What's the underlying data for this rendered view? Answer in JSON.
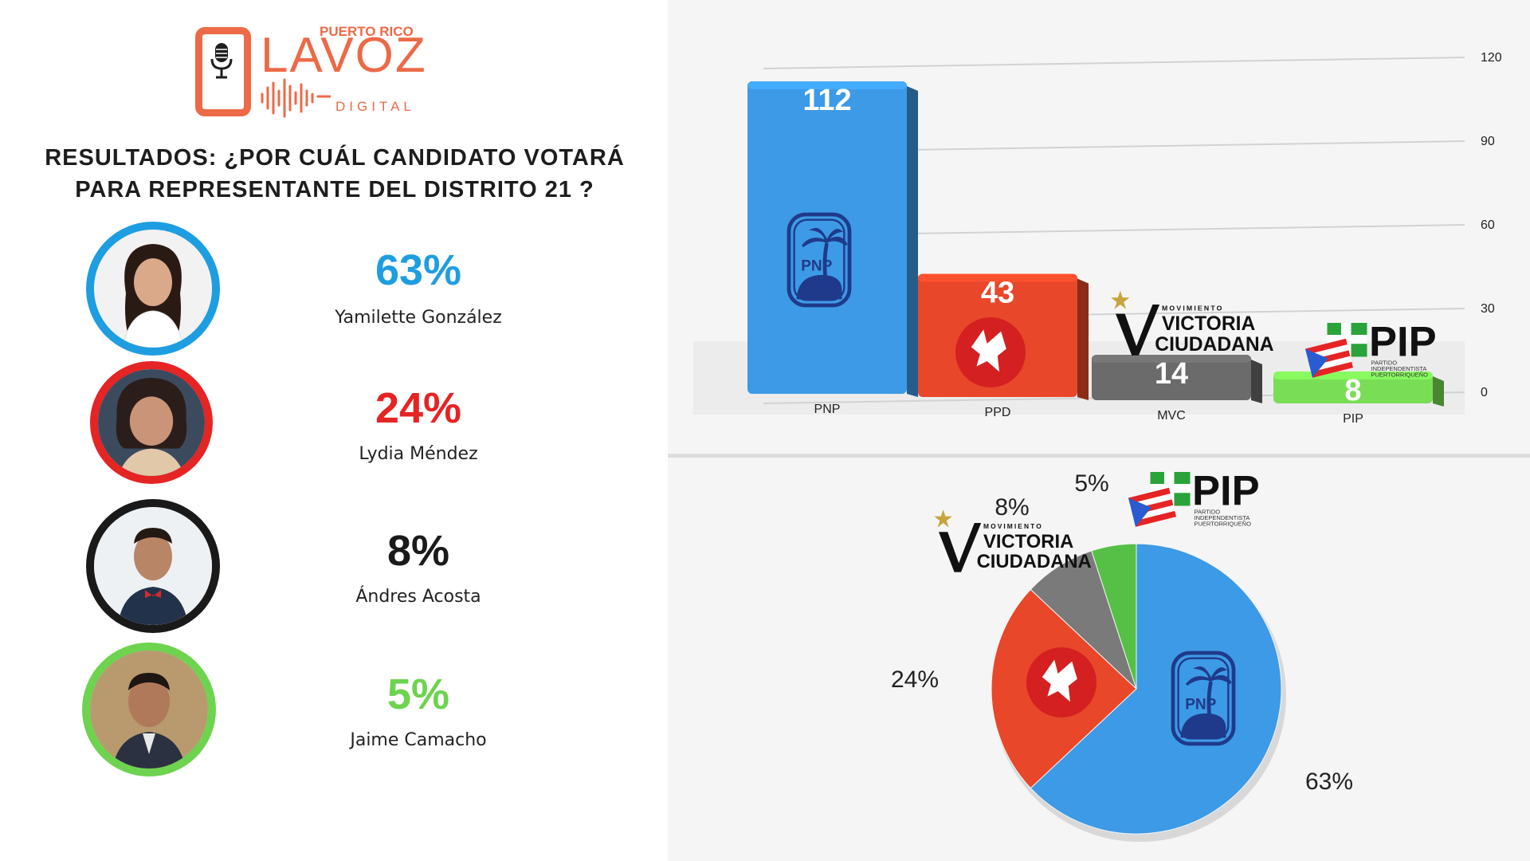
{
  "logo": {
    "line1": "PUERTO RICO",
    "line2": "LAVOZ",
    "line3": "DIGITAL"
  },
  "headline": {
    "line1": "RESULTADOS: ¿POR CUÁL CANDIDATO VOTARÁ",
    "line2": "PARA REPRESENTANTE DEL DISTRITO 21 ?"
  },
  "candidates": [
    {
      "percent": "63%",
      "name": "Yamilette González",
      "color": "#1e9ee0"
    },
    {
      "percent": "24%",
      "name": "Lydia Méndez",
      "color": "#e52424"
    },
    {
      "percent": "8%",
      "name": "Ándres Acosta",
      "color": "#1a1a1a"
    },
    {
      "percent": "5%",
      "name": "Jaime Camacho",
      "color": "#6ed34f"
    }
  ],
  "logos": {
    "pnp": "PNP",
    "mvc_small": "MOVIMIENTO",
    "mvc_line1": "VICTORIA",
    "mvc_line2": "CIUDADANA",
    "pip_big": "PIP",
    "pip_l1": "PARTIDO",
    "pip_l2": "INDEPENDENTISTA",
    "pip_l3": "PUERTORRIQUEÑO"
  },
  "chart_data": [
    {
      "type": "bar",
      "categories": [
        "PNP",
        "PPD",
        "MVC",
        "PIP"
      ],
      "values": [
        112,
        43,
        14,
        8
      ],
      "colors": [
        "#3d9ae6",
        "#e8472a",
        "#6b6b6b",
        "#79de55"
      ],
      "ylim": [
        0,
        120
      ],
      "yticks": [
        0,
        30,
        60,
        90,
        120
      ],
      "grid": true,
      "style": "3d"
    },
    {
      "type": "pie",
      "labels": [
        "PNP",
        "PPD",
        "MVC",
        "PIP"
      ],
      "values": [
        63,
        24,
        8,
        5
      ],
      "display_labels": [
        "63%",
        "24%",
        "8%",
        "5%"
      ],
      "colors": [
        "#3d9ae6",
        "#e8472a",
        "#7a7a7a",
        "#56c046"
      ]
    }
  ]
}
